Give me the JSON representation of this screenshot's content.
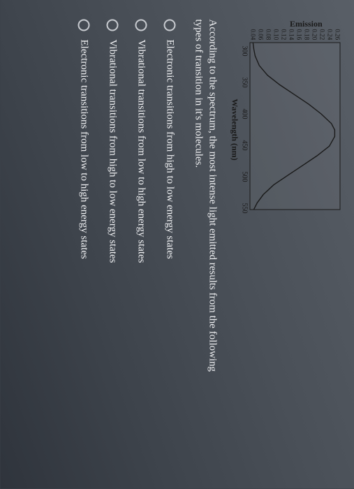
{
  "chart": {
    "type": "line",
    "ylabel": "Emission",
    "xlabel": "Wavelength (nm)",
    "yticks": [
      "0.26",
      "0.24",
      "0.22",
      "0.20",
      "0.18",
      "0.16",
      "0.14",
      "0.12",
      "0.10",
      "0.08",
      "0.06",
      "0.04"
    ],
    "xticks": [
      "300",
      "350",
      "400",
      "450",
      "500",
      "550"
    ],
    "ylim": [
      0.04,
      0.26
    ],
    "xlim": [
      300,
      560
    ],
    "line_color": "#1a1a1a",
    "line_width": 1.4,
    "border_color": "#1a1a1a",
    "background_color": "rgba(200,205,210,0.06)",
    "tick_fontsize": 9,
    "label_fontsize": 12,
    "curve_points": [
      [
        300,
        0.05
      ],
      [
        310,
        0.052
      ],
      [
        320,
        0.055
      ],
      [
        335,
        0.065
      ],
      [
        350,
        0.085
      ],
      [
        365,
        0.115
      ],
      [
        380,
        0.15
      ],
      [
        395,
        0.185
      ],
      [
        410,
        0.215
      ],
      [
        425,
        0.24
      ],
      [
        435,
        0.248
      ],
      [
        445,
        0.248
      ],
      [
        460,
        0.235
      ],
      [
        475,
        0.205
      ],
      [
        490,
        0.17
      ],
      [
        505,
        0.135
      ],
      [
        520,
        0.1
      ],
      [
        535,
        0.075
      ],
      [
        548,
        0.06
      ],
      [
        558,
        0.052
      ]
    ]
  },
  "question_line1": "According to the spectrum, the most intense light emitted results from the following",
  "question_line2": "types of transition in it's molecules.",
  "options": [
    "Electronic transitions from high to low energy states",
    "Vibrational transitions from low to high energy states",
    "Vibrational transitions from high to low energy states",
    "Electronic transitions from low to high energy states"
  ]
}
